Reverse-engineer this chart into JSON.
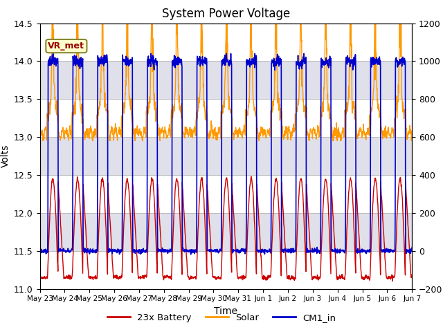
{
  "title": "System Power Voltage",
  "xlabel": "Time",
  "ylabel_left": "Volts",
  "ylim_left": [
    11.0,
    14.5
  ],
  "ylim_right": [
    -200,
    1200
  ],
  "xtick_labels": [
    "May 23",
    "May 24",
    "May 25",
    "May 26",
    "May 27",
    "May 28",
    "May 29",
    "May 30",
    "May 31",
    "Jun 1",
    "Jun 2",
    "Jun 3",
    "Jun 4",
    "Jun 5",
    "Jun 6",
    "Jun 7"
  ],
  "yticks_left": [
    11.0,
    11.5,
    12.0,
    12.5,
    13.0,
    13.5,
    14.0,
    14.5
  ],
  "yticks_right": [
    -200,
    0,
    200,
    400,
    600,
    800,
    1000,
    1200
  ],
  "color_battery": "#cc0000",
  "color_solar": "#ff9900",
  "color_cm1": "#0000cc",
  "legend_labels": [
    "23x Battery",
    "Solar",
    "CM1_in"
  ],
  "annotation_text": "VR_met",
  "bg_band_color": "#e0e0ea",
  "grid_color": "#bbbbbb"
}
